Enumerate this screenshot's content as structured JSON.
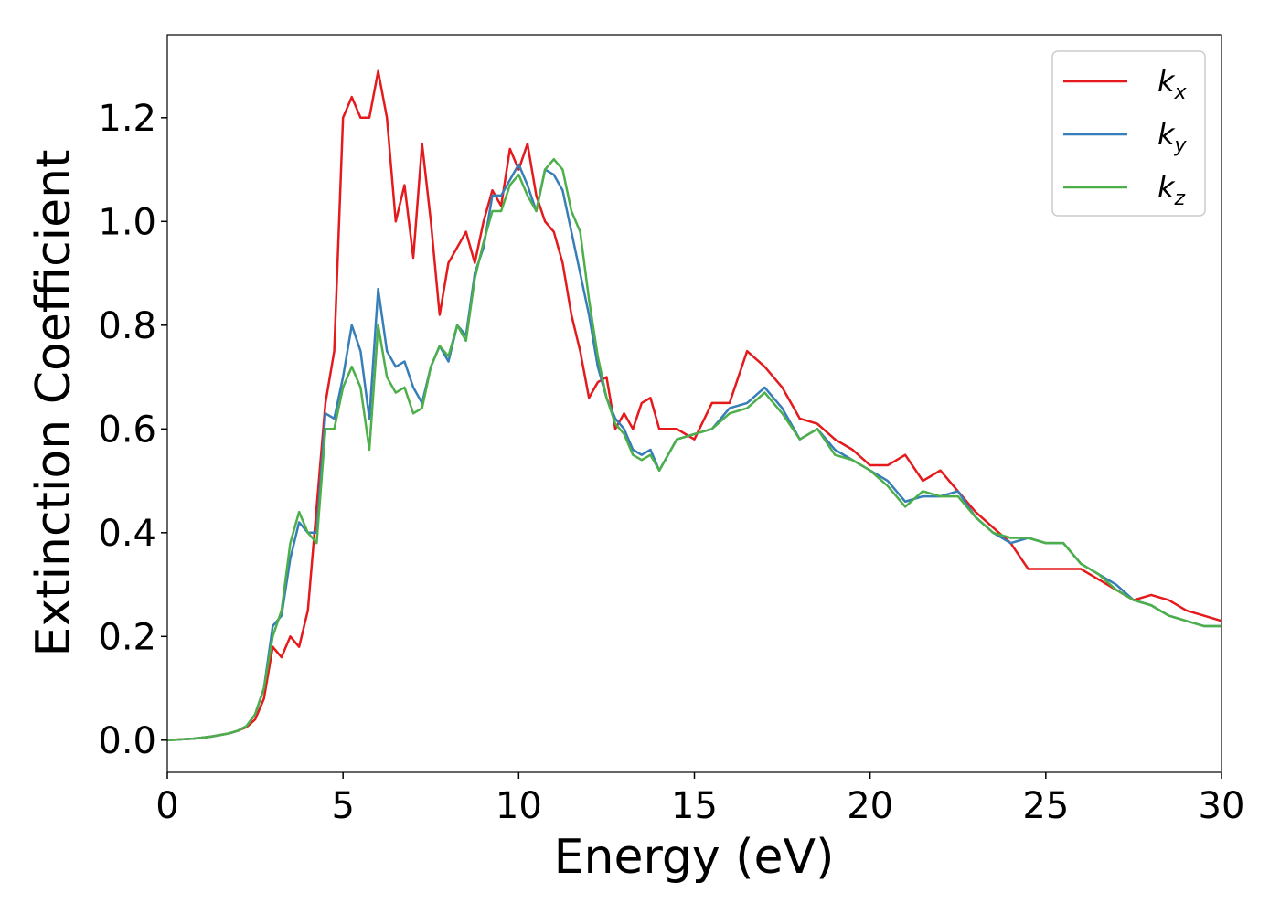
{
  "chart_data": {
    "type": "line",
    "x_label": "Energy (eV)",
    "y_label": "Extinction Coefficient",
    "x": [
      0,
      0.25,
      0.5,
      0.75,
      1,
      1.25,
      1.5,
      1.75,
      2,
      2.25,
      2.5,
      2.75,
      3,
      3.25,
      3.5,
      3.75,
      4,
      4.25,
      4.5,
      4.75,
      5,
      5.25,
      5.5,
      5.75,
      6,
      6.25,
      6.5,
      6.75,
      7,
      7.25,
      7.5,
      7.75,
      8,
      8.25,
      8.5,
      8.75,
      9,
      9.25,
      9.5,
      9.75,
      10,
      10.25,
      10.5,
      10.75,
      11,
      11.25,
      11.5,
      11.75,
      12,
      12.25,
      12.5,
      12.75,
      13,
      13.25,
      13.5,
      13.75,
      14,
      14.5,
      15,
      15.5,
      16,
      16.5,
      17,
      17.5,
      18,
      18.5,
      19,
      19.5,
      20,
      20.5,
      21,
      21.5,
      22,
      22.5,
      23,
      23.5,
      24,
      24.5,
      25,
      25.5,
      26,
      26.5,
      27,
      27.5,
      28,
      28.5,
      29,
      29.5,
      30
    ],
    "series": [
      {
        "name": "kx",
        "color": "#e41a1c",
        "values": [
          0,
          0.001,
          0.002,
          0.003,
          0.005,
          0.007,
          0.01,
          0.013,
          0.018,
          0.025,
          0.04,
          0.08,
          0.18,
          0.16,
          0.2,
          0.18,
          0.25,
          0.45,
          0.65,
          0.75,
          1.2,
          1.24,
          1.2,
          1.2,
          1.29,
          1.2,
          1.0,
          1.07,
          0.93,
          1.15,
          1.0,
          0.82,
          0.92,
          0.95,
          0.98,
          0.92,
          1.0,
          1.06,
          1.03,
          1.14,
          1.1,
          1.15,
          1.05,
          1.0,
          0.98,
          0.92,
          0.82,
          0.75,
          0.66,
          0.69,
          0.7,
          0.6,
          0.63,
          0.6,
          0.65,
          0.66,
          0.6,
          0.6,
          0.58,
          0.65,
          0.65,
          0.75,
          0.72,
          0.68,
          0.62,
          0.61,
          0.58,
          0.56,
          0.53,
          0.53,
          0.55,
          0.5,
          0.52,
          0.48,
          0.44,
          0.41,
          0.38,
          0.33,
          0.33,
          0.33,
          0.33,
          0.31,
          0.29,
          0.27,
          0.28,
          0.27,
          0.25,
          0.24,
          0.23
        ]
      },
      {
        "name": "ky",
        "color": "#377eb8",
        "values": [
          0,
          0.001,
          0.002,
          0.003,
          0.005,
          0.007,
          0.01,
          0.013,
          0.018,
          0.027,
          0.05,
          0.1,
          0.22,
          0.24,
          0.35,
          0.42,
          0.4,
          0.4,
          0.63,
          0.62,
          0.7,
          0.8,
          0.75,
          0.62,
          0.87,
          0.75,
          0.72,
          0.73,
          0.68,
          0.65,
          0.72,
          0.76,
          0.73,
          0.8,
          0.78,
          0.9,
          0.95,
          1.05,
          1.05,
          1.08,
          1.11,
          1.07,
          1.02,
          1.1,
          1.09,
          1.06,
          0.98,
          0.9,
          0.82,
          0.72,
          0.66,
          0.62,
          0.6,
          0.56,
          0.55,
          0.56,
          0.52,
          0.58,
          0.59,
          0.6,
          0.64,
          0.65,
          0.68,
          0.64,
          0.58,
          0.6,
          0.56,
          0.54,
          0.52,
          0.5,
          0.46,
          0.47,
          0.47,
          0.48,
          0.43,
          0.4,
          0.38,
          0.39,
          0.38,
          0.38,
          0.34,
          0.32,
          0.3,
          0.27,
          0.26,
          0.24,
          0.23,
          0.22,
          0.22
        ]
      },
      {
        "name": "kz",
        "color": "#4daf4a",
        "values": [
          0,
          0.001,
          0.002,
          0.003,
          0.005,
          0.007,
          0.01,
          0.013,
          0.018,
          0.027,
          0.05,
          0.1,
          0.2,
          0.25,
          0.38,
          0.44,
          0.4,
          0.38,
          0.6,
          0.6,
          0.68,
          0.72,
          0.68,
          0.56,
          0.8,
          0.7,
          0.67,
          0.68,
          0.63,
          0.64,
          0.72,
          0.76,
          0.74,
          0.8,
          0.77,
          0.89,
          0.96,
          1.02,
          1.02,
          1.07,
          1.09,
          1.05,
          1.02,
          1.1,
          1.12,
          1.1,
          1.02,
          0.98,
          0.85,
          0.74,
          0.66,
          0.61,
          0.59,
          0.55,
          0.54,
          0.55,
          0.52,
          0.58,
          0.59,
          0.6,
          0.63,
          0.64,
          0.67,
          0.63,
          0.58,
          0.6,
          0.55,
          0.54,
          0.52,
          0.49,
          0.45,
          0.48,
          0.47,
          0.47,
          0.43,
          0.4,
          0.39,
          0.39,
          0.38,
          0.38,
          0.34,
          0.32,
          0.29,
          0.27,
          0.26,
          0.24,
          0.23,
          0.22,
          0.22
        ]
      }
    ],
    "xlim": [
      0,
      30
    ],
    "xticks": [
      0,
      5,
      10,
      15,
      20,
      25,
      30
    ],
    "ylim": [
      -0.062,
      1.36
    ],
    "yticks": [
      {
        "value": 0,
        "label": "0.0"
      },
      0.2,
      0.4,
      0.6,
      0.8,
      {
        "value": 1,
        "label": "1.0"
      },
      1.2
    ],
    "legend": "upper right"
  }
}
